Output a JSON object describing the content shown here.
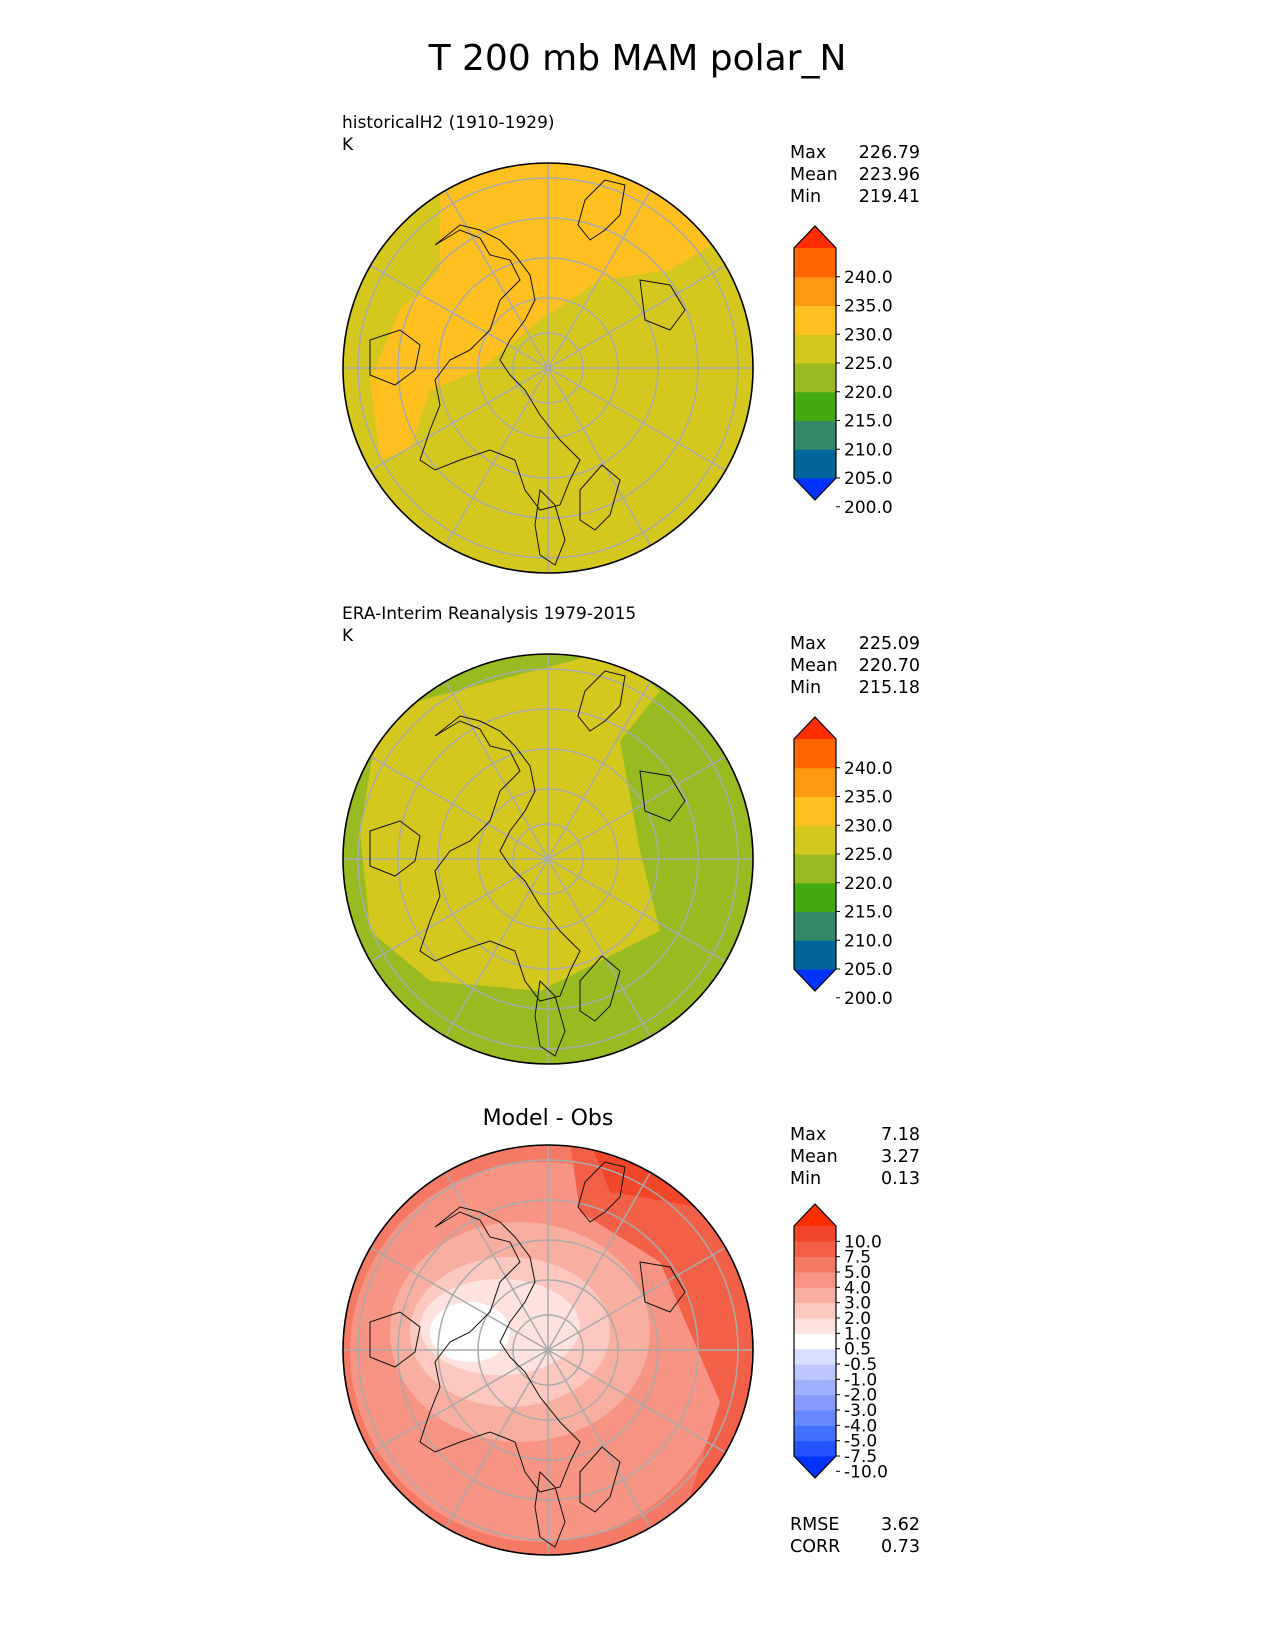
{
  "title": "T 200 mb MAM polar_N",
  "panels": [
    {
      "id": "model",
      "title_line1": "historicalH2 (1910-1929)",
      "title_line2": "K",
      "stats": [
        {
          "label": "Max",
          "value": "226.79"
        },
        {
          "label": "Mean",
          "value": "223.96"
        },
        {
          "label": "Min",
          "value": "219.41"
        }
      ],
      "colorbar": {
        "labels": [
          "240.0",
          "235.0",
          "230.0",
          "225.0",
          "220.0",
          "215.0",
          "210.0",
          "205.0",
          "200.0"
        ],
        "colors": [
          "#0033ff",
          "#006699",
          "#338866",
          "#44aa11",
          "#99bb22",
          "#d4c81e",
          "#ffc020",
          "#ff9911",
          "#ff6600",
          "#ff2e00"
        ]
      },
      "fill_color": "#d4c81e",
      "warm_color": "#ffc020"
    },
    {
      "id": "obs",
      "title_line1": "ERA-Interim Reanalysis 1979-2015",
      "title_line2": "K",
      "stats": [
        {
          "label": "Max",
          "value": "225.09"
        },
        {
          "label": "Mean",
          "value": "220.70"
        },
        {
          "label": "Min",
          "value": "215.18"
        }
      ],
      "colorbar": {
        "labels": [
          "240.0",
          "235.0",
          "230.0",
          "225.0",
          "220.0",
          "215.0",
          "210.0",
          "205.0",
          "200.0"
        ],
        "colors": [
          "#0033ff",
          "#006699",
          "#338866",
          "#44aa11",
          "#99bb22",
          "#d4c81e",
          "#ffc020",
          "#ff9911",
          "#ff6600",
          "#ff2e00"
        ]
      },
      "fill_color": "#d4c81e",
      "cool_color": "#99bb22"
    },
    {
      "id": "diff",
      "title_center": "Model - Obs",
      "stats": [
        {
          "label": "Max",
          "value": "7.18"
        },
        {
          "label": "Mean",
          "value": "3.27"
        },
        {
          "label": "Min",
          "value": "0.13"
        }
      ],
      "colorbar": {
        "labels": [
          "10.0",
          "7.5",
          "5.0",
          "4.0",
          "3.0",
          "2.0",
          "1.0",
          "0.5",
          "-0.5",
          "-1.0",
          "-2.0",
          "-3.0",
          "-4.0",
          "-5.0",
          "-7.5",
          "-10.0"
        ],
        "colors": [
          "#0033ff",
          "#2255ff",
          "#4470ff",
          "#6688ff",
          "#8899ff",
          "#a0b0ff",
          "#bcc8ff",
          "#d8e0ff",
          "#ffffff",
          "#fde2de",
          "#fcc8c0",
          "#f9aea2",
          "#f79484",
          "#f57a66",
          "#f36048",
          "#f1462a",
          "#ff2e00"
        ]
      },
      "footer_stats": [
        {
          "label": "RMSE",
          "value": "3.62"
        },
        {
          "label": "CORR",
          "value": "0.73"
        }
      ]
    }
  ]
}
